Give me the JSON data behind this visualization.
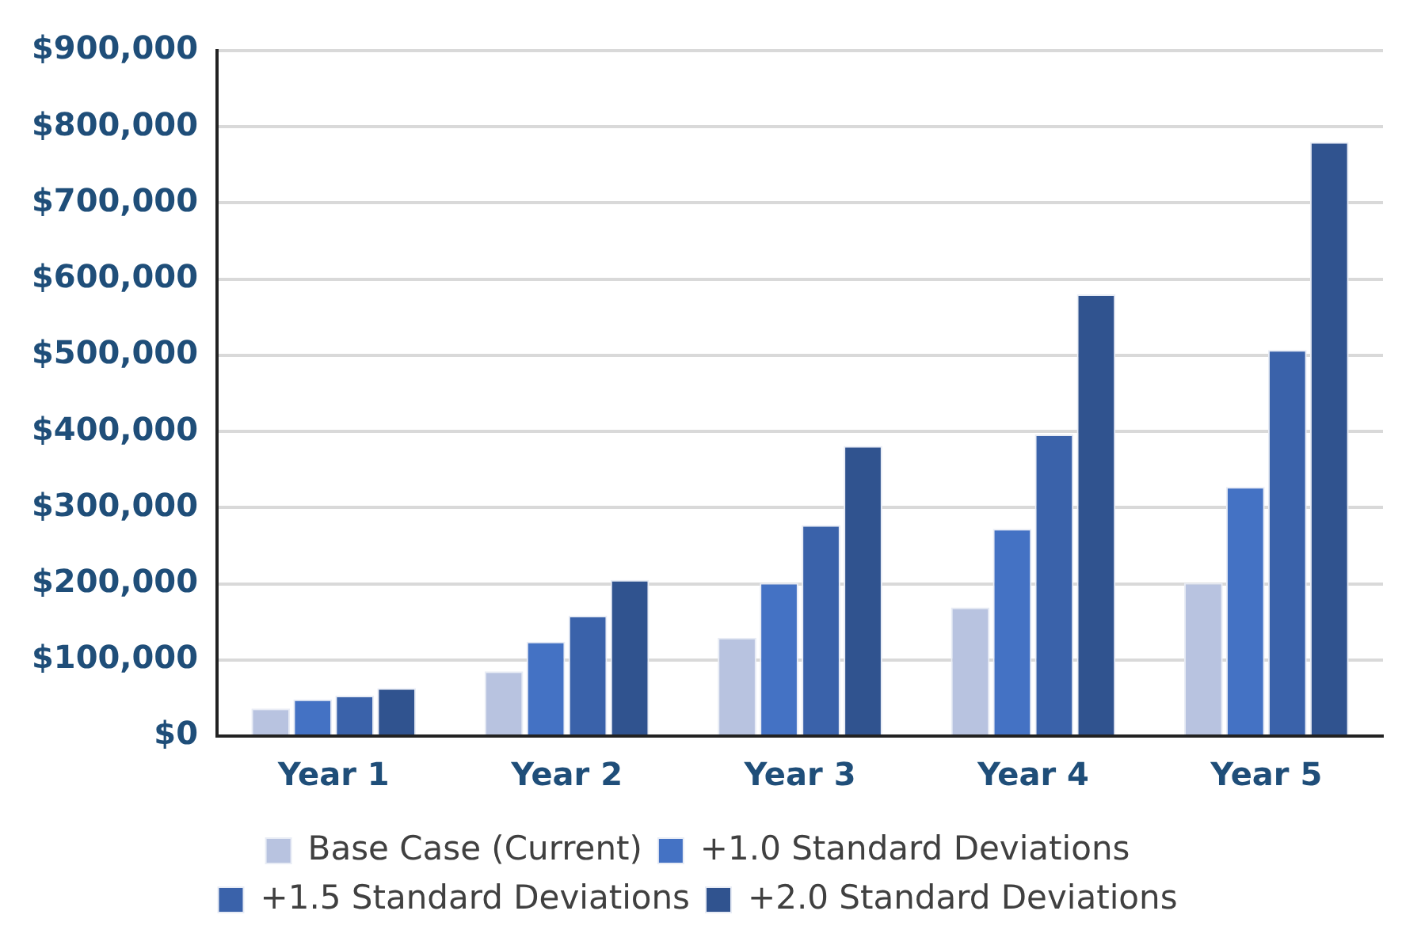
{
  "chart_data": {
    "type": "bar",
    "categories": [
      "Year 1",
      "Year 2",
      "Year 3",
      "Year 4",
      "Year 5"
    ],
    "series": [
      {
        "name": "Base Case (Current)",
        "color": "#b8c3e0",
        "values": [
          36000,
          85000,
          129000,
          169000,
          201000
        ]
      },
      {
        "name": "+1.0 Standard Deviations",
        "color": "#4472c4",
        "values": [
          48000,
          124000,
          201000,
          272000,
          327000
        ]
      },
      {
        "name": "+1.5 Standard Deviations",
        "color": "#3a62aa",
        "values": [
          53000,
          158000,
          277000,
          396000,
          507000
        ]
      },
      {
        "name": "+2.0 Standard Deviations",
        "color": "#30538f",
        "values": [
          63000,
          205000,
          381000,
          580000,
          780000
        ]
      }
    ],
    "ylim": [
      0,
      900000
    ],
    "yticks": [
      {
        "value": 0,
        "label": "$0"
      },
      {
        "value": 100000,
        "label": "$100,000"
      },
      {
        "value": 200000,
        "label": "$200,000"
      },
      {
        "value": 300000,
        "label": "$300,000"
      },
      {
        "value": 400000,
        "label": "$400,000"
      },
      {
        "value": 500000,
        "label": "$500,000"
      },
      {
        "value": 600000,
        "label": "$600,000"
      },
      {
        "value": 700000,
        "label": "$700,000"
      },
      {
        "value": 800000,
        "label": "$800,000"
      },
      {
        "value": 900000,
        "label": "$900,000"
      }
    ],
    "grid": "y",
    "legend": "bottom"
  }
}
